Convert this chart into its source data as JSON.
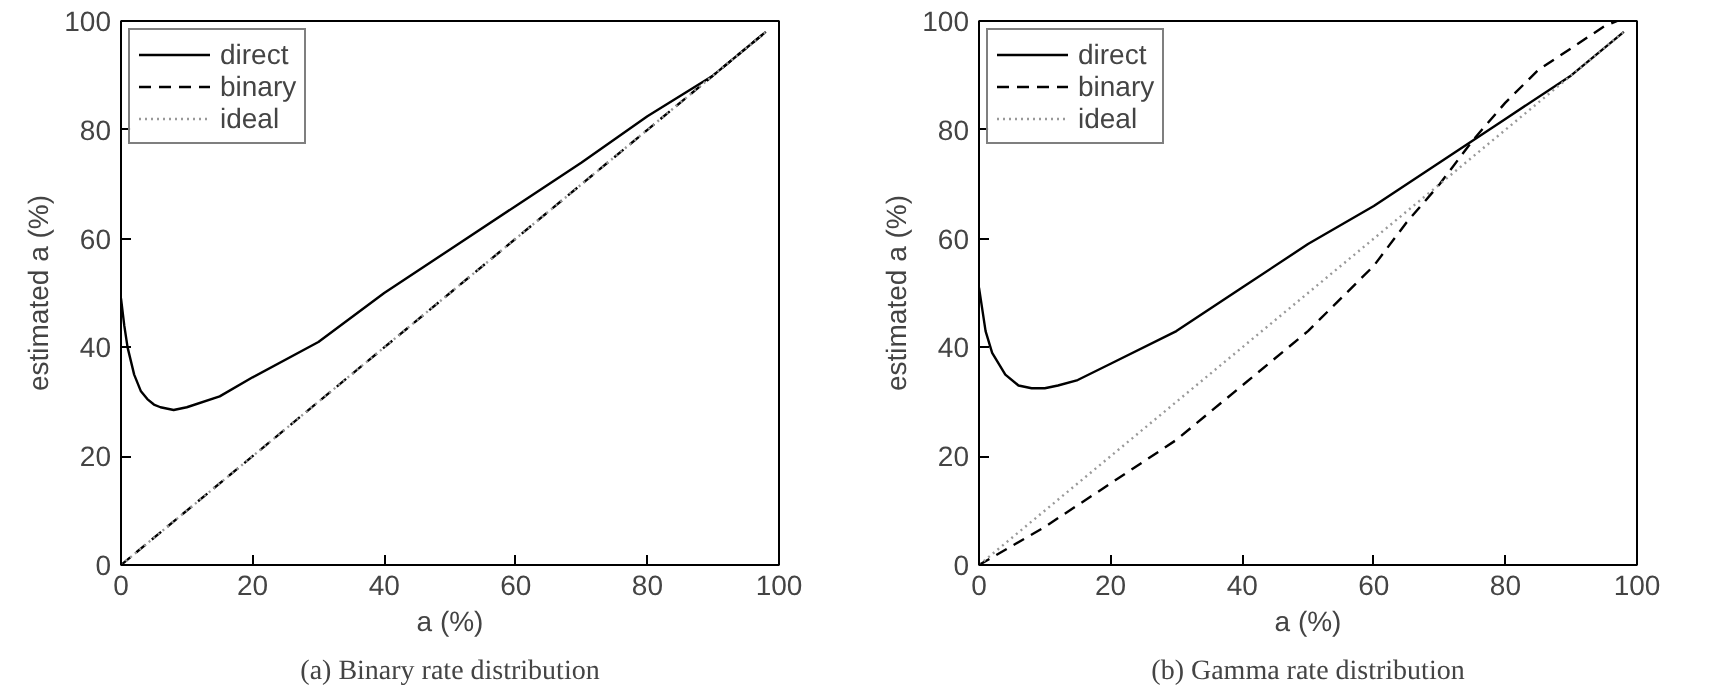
{
  "chart_data": [
    {
      "type": "line",
      "xlabel": "a (%)",
      "ylabel": "estimated a (%)",
      "annotations": [
        "(a) Binary rate distribution"
      ],
      "xlim": [
        0,
        100
      ],
      "ylim": [
        0,
        100
      ],
      "xticks": [
        0,
        20,
        40,
        60,
        80,
        100
      ],
      "yticks": [
        0,
        20,
        40,
        60,
        80,
        100
      ],
      "grid": false,
      "legend": "top left",
      "series": [
        {
          "name": "direct",
          "color": "#000000",
          "line_style": "solid",
          "x": [
            0,
            0.5,
            1,
            2,
            3,
            4,
            5,
            6,
            8,
            10,
            15,
            20,
            30,
            40,
            50,
            60,
            70,
            80,
            90,
            98
          ],
          "values": [
            49,
            44,
            40,
            35,
            32,
            30.5,
            29.5,
            29,
            28.5,
            29,
            31,
            34.5,
            41,
            50,
            58,
            66,
            74,
            82.5,
            90,
            98
          ]
        },
        {
          "name": "binary",
          "color": "#000000",
          "line_style": "dashed",
          "x": [
            0,
            20,
            40,
            60,
            80,
            98
          ],
          "values": [
            0,
            20,
            40,
            60,
            80,
            98
          ]
        },
        {
          "name": "ideal",
          "color": "#999999",
          "line_style": "dotted",
          "x": [
            0,
            98
          ],
          "values": [
            0,
            98
          ]
        }
      ]
    },
    {
      "type": "line",
      "xlabel": "a (%)",
      "ylabel": "estimated a (%)",
      "annotations": [
        "(b) Gamma rate distribution"
      ],
      "xlim": [
        0,
        100
      ],
      "ylim": [
        0,
        100
      ],
      "xticks": [
        0,
        20,
        40,
        60,
        80,
        100
      ],
      "yticks": [
        0,
        20,
        40,
        60,
        80,
        100
      ],
      "grid": false,
      "legend": "top left",
      "series": [
        {
          "name": "direct",
          "color": "#000000",
          "line_style": "solid",
          "x": [
            0,
            1,
            2,
            4,
            6,
            8,
            10,
            12,
            15,
            20,
            30,
            40,
            50,
            60,
            70,
            80,
            90,
            98
          ],
          "values": [
            51,
            43,
            39,
            35,
            33,
            32.5,
            32.5,
            33,
            34,
            37,
            43,
            51,
            59,
            66,
            74,
            82,
            90,
            98
          ]
        },
        {
          "name": "binary",
          "color": "#000000",
          "line_style": "dashed",
          "x": [
            0,
            10,
            20,
            30,
            40,
            50,
            60,
            65,
            70,
            75,
            80,
            85,
            90,
            95,
            97
          ],
          "values": [
            0,
            7,
            15,
            23,
            33,
            43,
            55,
            63,
            70,
            78,
            85,
            91,
            95,
            99,
            100
          ]
        },
        {
          "name": "ideal",
          "color": "#999999",
          "line_style": "dotted",
          "x": [
            0,
            98
          ],
          "values": [
            0,
            98
          ]
        }
      ]
    }
  ]
}
